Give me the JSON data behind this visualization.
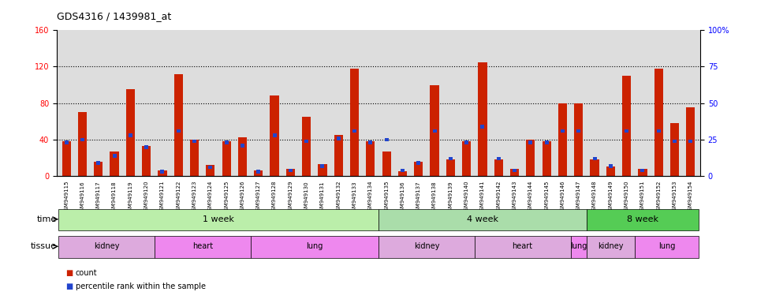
{
  "title": "GDS4316 / 1439981_at",
  "samples": [
    "GSM949115",
    "GSM949116",
    "GSM949117",
    "GSM949118",
    "GSM949119",
    "GSM949120",
    "GSM949121",
    "GSM949122",
    "GSM949123",
    "GSM949124",
    "GSM949125",
    "GSM949126",
    "GSM949127",
    "GSM949128",
    "GSM949129",
    "GSM949130",
    "GSM949131",
    "GSM949132",
    "GSM949133",
    "GSM949134",
    "GSM949135",
    "GSM949136",
    "GSM949137",
    "GSM949138",
    "GSM949139",
    "GSM949140",
    "GSM949141",
    "GSM949142",
    "GSM949143",
    "GSM949144",
    "GSM949145",
    "GSM949146",
    "GSM949147",
    "GSM949148",
    "GSM949149",
    "GSM949150",
    "GSM949151",
    "GSM949152",
    "GSM949153",
    "GSM949154"
  ],
  "counts": [
    38,
    70,
    15,
    27,
    95,
    33,
    6,
    112,
    40,
    12,
    38,
    42,
    6,
    88,
    8,
    65,
    13,
    45,
    118,
    38,
    27,
    5,
    15,
    100,
    18,
    38,
    125,
    18,
    8,
    40,
    38,
    80,
    80,
    18,
    10,
    110,
    8,
    118,
    58,
    75
  ],
  "percentiles_pct": [
    24,
    26,
    10,
    15,
    29,
    21,
    4,
    32,
    25,
    7,
    24,
    22,
    4,
    29,
    5,
    25,
    8,
    27,
    32,
    24,
    26,
    5,
    10,
    32,
    13,
    24,
    35,
    13,
    5,
    24,
    24,
    32,
    32,
    13,
    8,
    32,
    5,
    32,
    25,
    25
  ],
  "ylim_left": [
    0,
    160
  ],
  "ylim_right": [
    0,
    100
  ],
  "yticks_left": [
    0,
    40,
    80,
    120,
    160
  ],
  "yticks_right": [
    0,
    25,
    50,
    75,
    100
  ],
  "bar_color_count": "#cc2200",
  "bar_color_pct": "#2244cc",
  "chart_bg": "#dddddd",
  "fig_bg": "#ffffff",
  "time_groups": [
    {
      "label": "1 week",
      "start": 0,
      "end": 19,
      "color": "#bbeeaa"
    },
    {
      "label": "4 week",
      "start": 20,
      "end": 32,
      "color": "#aaddaa"
    },
    {
      "label": "8 week",
      "start": 33,
      "end": 39,
      "color": "#66cc66"
    }
  ],
  "tissue_groups": [
    {
      "label": "kidney",
      "start": 0,
      "end": 5,
      "color": "#ddaadd"
    },
    {
      "label": "heart",
      "start": 6,
      "end": 11,
      "color": "#ee88ee"
    },
    {
      "label": "lung",
      "start": 12,
      "end": 19,
      "color": "#ee88ee"
    },
    {
      "label": "kidney",
      "start": 20,
      "end": 25,
      "color": "#ddaadd"
    },
    {
      "label": "heart",
      "start": 26,
      "end": 31,
      "color": "#ddaadd"
    },
    {
      "label": "lung",
      "start": 32,
      "end": 32,
      "color": "#ee88ee"
    },
    {
      "label": "kidney",
      "start": 33,
      "end": 35,
      "color": "#ddaadd"
    },
    {
      "label": "lung",
      "start": 36,
      "end": 39,
      "color": "#ee88ee"
    }
  ]
}
